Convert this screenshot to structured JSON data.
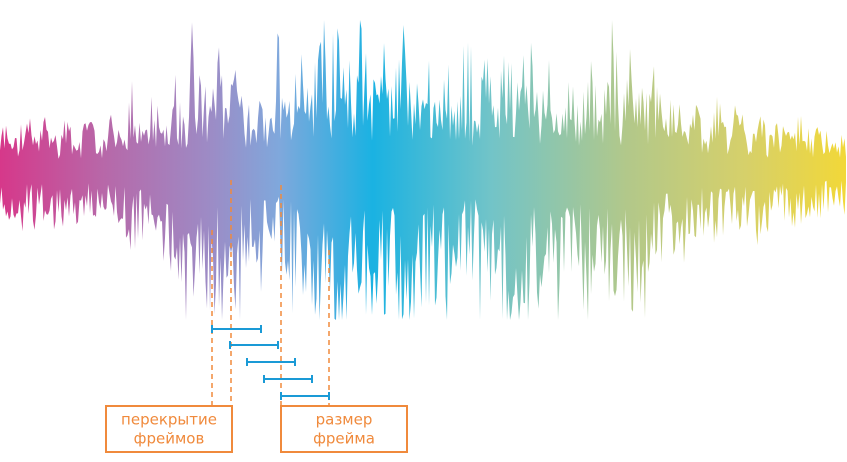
{
  "labels": {
    "overlap": [
      "перекрытие",
      "фреймов"
    ],
    "frame_size": [
      "размер",
      "фрейма"
    ]
  }
}
